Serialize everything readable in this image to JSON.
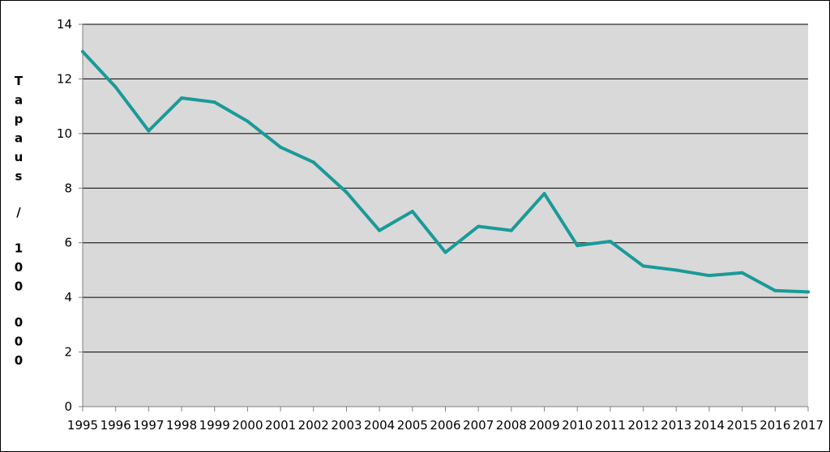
{
  "chart_data": {
    "type": "line",
    "title": "",
    "xlabel": "",
    "ylabel": "Tapaus / 100 000",
    "x": [
      "1995",
      "1996",
      "1997",
      "1998",
      "1999",
      "2000",
      "2001",
      "2002",
      "2003",
      "2004",
      "2005",
      "2006",
      "2007",
      "2008",
      "2009",
      "2010",
      "2011",
      "2012",
      "2013",
      "2014",
      "2015",
      "2016",
      "2017"
    ],
    "series": [
      {
        "name": "",
        "color": "#1a9a98",
        "values": [
          13.0,
          11.7,
          10.1,
          11.3,
          11.15,
          10.45,
          9.5,
          8.95,
          7.85,
          6.45,
          7.15,
          5.65,
          6.6,
          6.45,
          7.8,
          5.9,
          6.05,
          5.15,
          5.0,
          4.8,
          4.9,
          4.25,
          4.2
        ]
      }
    ],
    "ylim": [
      0,
      14
    ],
    "yticks": [
      0,
      2,
      4,
      6,
      8,
      10,
      12,
      14
    ],
    "grid": true,
    "legend": "none",
    "plot_background": "#d9d9d9",
    "gridline_color": "#000000"
  }
}
